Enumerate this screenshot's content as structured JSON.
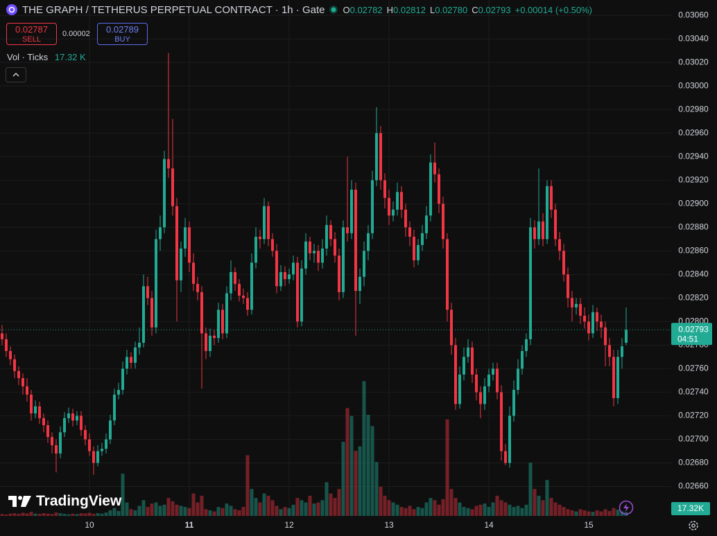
{
  "chart_data": {
    "type": "candlestick",
    "categories": [
      null,
      null,
      null,
      null,
      null,
      null,
      null,
      null,
      null,
      null,
      null,
      null,
      null,
      null,
      null,
      null,
      null,
      null,
      null,
      null,
      null,
      "10",
      null,
      null,
      null,
      null,
      null,
      null,
      null,
      null,
      null,
      null,
      null,
      null,
      null,
      null,
      null,
      null,
      null,
      null,
      null,
      null,
      null,
      null,
      null,
      "11",
      null,
      null,
      null,
      null,
      null,
      null,
      null,
      null,
      null,
      null,
      null,
      null,
      null,
      null,
      null,
      null,
      null,
      null,
      null,
      null,
      null,
      null,
      null,
      "12",
      null,
      null,
      null,
      null,
      null,
      null,
      null,
      null,
      null,
      null,
      null,
      null,
      null,
      null,
      null,
      null,
      null,
      null,
      null,
      null,
      null,
      null,
      null,
      "13",
      null,
      null,
      null,
      null,
      null,
      null,
      null,
      null,
      null,
      null,
      null,
      null,
      null,
      null,
      null,
      null,
      null,
      null,
      null,
      null,
      null,
      null,
      null,
      "14",
      null,
      null,
      null,
      null,
      null,
      null,
      null,
      null,
      null,
      null,
      null,
      null,
      null,
      null,
      null,
      null,
      null,
      null,
      null,
      null,
      null,
      null,
      null,
      "15",
      null,
      null,
      null,
      null,
      null,
      null,
      null,
      null,
      null
    ],
    "ohlc": [
      [
        0.0279,
        0.02797,
        0.0278,
        0.02785
      ],
      [
        0.02785,
        0.0279,
        0.0277,
        0.02775
      ],
      [
        0.02775,
        0.02779,
        0.02763,
        0.02768
      ],
      [
        0.02768,
        0.02772,
        0.02752,
        0.02758
      ],
      [
        0.02758,
        0.02762,
        0.02746,
        0.02752
      ],
      [
        0.02752,
        0.02756,
        0.02738,
        0.02745
      ],
      [
        0.02745,
        0.02752,
        0.02732,
        0.02738
      ],
      [
        0.02738,
        0.02742,
        0.02716,
        0.02722
      ],
      [
        0.02722,
        0.02733,
        0.02718,
        0.02728
      ],
      [
        0.02728,
        0.02732,
        0.02713,
        0.02718
      ],
      [
        0.02718,
        0.02722,
        0.02706,
        0.02712
      ],
      [
        0.02712,
        0.02716,
        0.02697,
        0.02702
      ],
      [
        0.02702,
        0.02706,
        0.02688,
        0.02695
      ],
      [
        0.02695,
        0.027,
        0.02672,
        0.02688
      ],
      [
        0.02688,
        0.02711,
        0.02684,
        0.02706
      ],
      [
        0.02706,
        0.02723,
        0.02702,
        0.02718
      ],
      [
        0.02718,
        0.02727,
        0.02714,
        0.02722
      ],
      [
        0.02722,
        0.02726,
        0.02711,
        0.02716
      ],
      [
        0.02716,
        0.02724,
        0.02712,
        0.0272
      ],
      [
        0.0272,
        0.02724,
        0.02703,
        0.02708
      ],
      [
        0.02708,
        0.02712,
        0.02695,
        0.027
      ],
      [
        0.027,
        0.02705,
        0.02686,
        0.0269
      ],
      [
        0.0269,
        0.02694,
        0.0267,
        0.0268
      ],
      [
        0.0268,
        0.02695,
        0.02677,
        0.0269
      ],
      [
        0.0269,
        0.02697,
        0.02686,
        0.02692
      ],
      [
        0.02692,
        0.02705,
        0.02688,
        0.027
      ],
      [
        0.027,
        0.02721,
        0.02696,
        0.02716
      ],
      [
        0.02716,
        0.02743,
        0.02712,
        0.02738
      ],
      [
        0.02738,
        0.02748,
        0.02734,
        0.02742
      ],
      [
        0.02742,
        0.02766,
        0.02738,
        0.0276
      ],
      [
        0.0276,
        0.02776,
        0.02755,
        0.0277
      ],
      [
        0.0277,
        0.02774,
        0.0276,
        0.02765
      ],
      [
        0.02765,
        0.02783,
        0.0276,
        0.02778
      ],
      [
        0.02778,
        0.02795,
        0.02772,
        0.02782
      ],
      [
        0.02782,
        0.0284,
        0.02778,
        0.0283
      ],
      [
        0.0283,
        0.02838,
        0.02814,
        0.0282
      ],
      [
        0.0282,
        0.02826,
        0.02788,
        0.02795
      ],
      [
        0.02795,
        0.02878,
        0.0279,
        0.0287
      ],
      [
        0.0287,
        0.0289,
        0.0286,
        0.0288
      ],
      [
        0.0288,
        0.02945,
        0.02875,
        0.02938
      ],
      [
        0.02938,
        0.03028,
        0.02922,
        0.0293
      ],
      [
        0.0293,
        0.02972,
        0.0289,
        0.02898
      ],
      [
        0.02898,
        0.02905,
        0.028,
        0.02835
      ],
      [
        0.02835,
        0.02868,
        0.02825,
        0.02862
      ],
      [
        0.02862,
        0.02888,
        0.02855,
        0.0288
      ],
      [
        0.0288,
        0.02885,
        0.02842,
        0.0285
      ],
      [
        0.0285,
        0.02858,
        0.02826,
        0.02832
      ],
      [
        0.02832,
        0.02838,
        0.02818,
        0.02825
      ],
      [
        0.02825,
        0.0283,
        0.02743,
        0.0279
      ],
      [
        0.0279,
        0.02795,
        0.02768,
        0.02775
      ],
      [
        0.02775,
        0.02794,
        0.0277,
        0.02788
      ],
      [
        0.02788,
        0.02793,
        0.0278,
        0.02786
      ],
      [
        0.02786,
        0.02816,
        0.02782,
        0.0281
      ],
      [
        0.0281,
        0.02815,
        0.02785,
        0.0279
      ],
      [
        0.0279,
        0.0283,
        0.02786,
        0.02824
      ],
      [
        0.02824,
        0.02852,
        0.02818,
        0.02842
      ],
      [
        0.02842,
        0.02846,
        0.02826,
        0.02832
      ],
      [
        0.02832,
        0.02836,
        0.02817,
        0.02822
      ],
      [
        0.02822,
        0.02828,
        0.02815,
        0.0282
      ],
      [
        0.0282,
        0.02825,
        0.02805,
        0.0281
      ],
      [
        0.0281,
        0.02858,
        0.02806,
        0.0285
      ],
      [
        0.0285,
        0.0288,
        0.02845,
        0.02872
      ],
      [
        0.02872,
        0.02878,
        0.02862,
        0.0287
      ],
      [
        0.0287,
        0.02905,
        0.02866,
        0.02898
      ],
      [
        0.02898,
        0.02902,
        0.02864,
        0.0287
      ],
      [
        0.0287,
        0.02875,
        0.02855,
        0.0286
      ],
      [
        0.0286,
        0.02866,
        0.02824,
        0.0283
      ],
      [
        0.0283,
        0.02848,
        0.02826,
        0.02842
      ],
      [
        0.02842,
        0.02847,
        0.0283,
        0.02836
      ],
      [
        0.02836,
        0.02845,
        0.02832,
        0.0284
      ],
      [
        0.0284,
        0.02856,
        0.02835,
        0.0285
      ],
      [
        0.0285,
        0.02855,
        0.02795,
        0.028
      ],
      [
        0.028,
        0.02852,
        0.02796,
        0.02845
      ],
      [
        0.02845,
        0.02875,
        0.0284,
        0.02868
      ],
      [
        0.02868,
        0.02872,
        0.02852,
        0.02858
      ],
      [
        0.02858,
        0.02866,
        0.0285,
        0.0286
      ],
      [
        0.0286,
        0.02865,
        0.02843,
        0.0285
      ],
      [
        0.0285,
        0.0287,
        0.02845,
        0.02862
      ],
      [
        0.02862,
        0.0289,
        0.02856,
        0.02882
      ],
      [
        0.02882,
        0.02886,
        0.02864,
        0.0287
      ],
      [
        0.0287,
        0.02876,
        0.0285,
        0.02856
      ],
      [
        0.02856,
        0.02862,
        0.02818,
        0.02825
      ],
      [
        0.02825,
        0.02886,
        0.0282,
        0.0288
      ],
      [
        0.0288,
        0.0294,
        0.02868,
        0.02875
      ],
      [
        0.02875,
        0.0292,
        0.0287,
        0.02912
      ],
      [
        0.02912,
        0.02918,
        0.02788,
        0.02826
      ],
      [
        0.02826,
        0.02845,
        0.02815,
        0.02838
      ],
      [
        0.02838,
        0.02868,
        0.0283,
        0.0286
      ],
      [
        0.0286,
        0.02882,
        0.02852,
        0.02875
      ],
      [
        0.02875,
        0.02928,
        0.0287,
        0.0292
      ],
      [
        0.0292,
        0.02982,
        0.02915,
        0.0296
      ],
      [
        0.0296,
        0.02966,
        0.02912,
        0.0292
      ],
      [
        0.0292,
        0.02926,
        0.02896,
        0.02905
      ],
      [
        0.02905,
        0.02912,
        0.02882,
        0.0289
      ],
      [
        0.0289,
        0.02902,
        0.02885,
        0.02895
      ],
      [
        0.02895,
        0.02918,
        0.0289,
        0.0291
      ],
      [
        0.0291,
        0.02915,
        0.02888,
        0.02895
      ],
      [
        0.02895,
        0.029,
        0.02872,
        0.0288
      ],
      [
        0.0288,
        0.02885,
        0.02864,
        0.02872
      ],
      [
        0.02872,
        0.02878,
        0.02846,
        0.02852
      ],
      [
        0.02852,
        0.0287,
        0.02848,
        0.02865
      ],
      [
        0.02865,
        0.02882,
        0.0286,
        0.02875
      ],
      [
        0.02875,
        0.02898,
        0.0287,
        0.0289
      ],
      [
        0.0289,
        0.02942,
        0.02885,
        0.02935
      ],
      [
        0.02935,
        0.02952,
        0.02918,
        0.02925
      ],
      [
        0.02925,
        0.0293,
        0.02892,
        0.029
      ],
      [
        0.029,
        0.02906,
        0.02862,
        0.0287
      ],
      [
        0.0287,
        0.02875,
        0.028,
        0.0281
      ],
      [
        0.0281,
        0.02816,
        0.02772,
        0.0278
      ],
      [
        0.0278,
        0.02786,
        0.02725,
        0.0273
      ],
      [
        0.0273,
        0.02762,
        0.02726,
        0.02755
      ],
      [
        0.02755,
        0.02778,
        0.0275,
        0.0277
      ],
      [
        0.0277,
        0.02785,
        0.02765,
        0.02778
      ],
      [
        0.02778,
        0.02783,
        0.02748,
        0.02755
      ],
      [
        0.02755,
        0.0276,
        0.02733,
        0.0274
      ],
      [
        0.0274,
        0.02745,
        0.02718,
        0.0273
      ],
      [
        0.0273,
        0.02752,
        0.02725,
        0.02745
      ],
      [
        0.02745,
        0.0276,
        0.0274,
        0.02755
      ],
      [
        0.02755,
        0.02765,
        0.0275,
        0.0276
      ],
      [
        0.0276,
        0.02765,
        0.02734,
        0.0274
      ],
      [
        0.0274,
        0.02746,
        0.02682,
        0.0269
      ],
      [
        0.0269,
        0.02696,
        0.02678,
        0.0268
      ],
      [
        0.0268,
        0.02728,
        0.02676,
        0.0272
      ],
      [
        0.0272,
        0.0275,
        0.02715,
        0.02742
      ],
      [
        0.02742,
        0.02768,
        0.02738,
        0.0276
      ],
      [
        0.0276,
        0.0278,
        0.02755,
        0.02775
      ],
      [
        0.02775,
        0.0279,
        0.0277,
        0.02785
      ],
      [
        0.02785,
        0.02888,
        0.0278,
        0.0288
      ],
      [
        0.0288,
        0.02886,
        0.02862,
        0.0287
      ],
      [
        0.0287,
        0.0293,
        0.02865,
        0.02885
      ],
      [
        0.02885,
        0.02892,
        0.02864,
        0.0287
      ],
      [
        0.0287,
        0.0292,
        0.02866,
        0.02915
      ],
      [
        0.02915,
        0.0292,
        0.02888,
        0.02895
      ],
      [
        0.02895,
        0.029,
        0.02864,
        0.0287
      ],
      [
        0.0287,
        0.02876,
        0.02852,
        0.0286
      ],
      [
        0.0286,
        0.02866,
        0.02834,
        0.0284
      ],
      [
        0.0284,
        0.02846,
        0.02812,
        0.0282
      ],
      [
        0.0282,
        0.02826,
        0.028,
        0.02812
      ],
      [
        0.02812,
        0.0282,
        0.02806,
        0.02815
      ],
      [
        0.02815,
        0.0282,
        0.02798,
        0.02805
      ],
      [
        0.02805,
        0.02812,
        0.02794,
        0.028
      ],
      [
        0.028,
        0.02806,
        0.02784,
        0.0279
      ],
      [
        0.0279,
        0.02814,
        0.02786,
        0.02808
      ],
      [
        0.02808,
        0.02812,
        0.02792,
        0.028
      ],
      [
        0.028,
        0.02806,
        0.02786,
        0.02795
      ],
      [
        0.02795,
        0.028,
        0.02762,
        0.0278
      ],
      [
        0.0278,
        0.02786,
        0.02762,
        0.0277
      ],
      [
        0.0277,
        0.02776,
        0.02728,
        0.02735
      ],
      [
        0.02735,
        0.02776,
        0.0273,
        0.0277
      ],
      [
        0.0277,
        0.02786,
        0.0276,
        0.02779
      ],
      [
        0.02782,
        0.02812,
        0.0278,
        0.02793
      ]
    ],
    "last_bar_labels": [
      "0.02782",
      "0.02812",
      "0.02780",
      "0.02793"
    ],
    "volumes": [
      8,
      6,
      10,
      12,
      9,
      14,
      11,
      18,
      10,
      9,
      12,
      10,
      8,
      15,
      12,
      9,
      7,
      10,
      8,
      12,
      11,
      14,
      9,
      12,
      10,
      15,
      25,
      35,
      22,
      188,
      60,
      30,
      25,
      45,
      70,
      40,
      55,
      60,
      45,
      50,
      80,
      65,
      50,
      45,
      40,
      35,
      100,
      60,
      90,
      30,
      25,
      20,
      40,
      35,
      55,
      45,
      30,
      25,
      40,
      270,
      120,
      80,
      60,
      100,
      90,
      70,
      45,
      30,
      40,
      35,
      50,
      80,
      70,
      60,
      90,
      55,
      60,
      70,
      150,
      100,
      80,
      120,
      330,
      480,
      445,
      290,
      310,
      600,
      450,
      400,
      240,
      130,
      90,
      70,
      60,
      50,
      40,
      35,
      45,
      30,
      40,
      35,
      60,
      80,
      70,
      50,
      75,
      430,
      120,
      80,
      60,
      40,
      35,
      30,
      45,
      50,
      55,
      40,
      60,
      90,
      70,
      60,
      50,
      40,
      45,
      35,
      50,
      237,
      120,
      90,
      70,
      160,
      80,
      60,
      50,
      40,
      30,
      25,
      20,
      30,
      25,
      20,
      18,
      25,
      20,
      30,
      22,
      35,
      28,
      20,
      17.32
    ],
    "vlim": [
      0,
      700
    ],
    "ylim": [
      0.02635,
      0.03073
    ],
    "yticks": [
      {
        "value": 0.0266,
        "label": "0.02660"
      },
      {
        "value": 0.0268,
        "label": "0.02680"
      },
      {
        "value": 0.027,
        "label": "0.02700"
      },
      {
        "value": 0.0272,
        "label": "0.02720"
      },
      {
        "value": 0.0274,
        "label": "0.02740"
      },
      {
        "value": 0.0276,
        "label": "0.02760"
      },
      {
        "value": 0.0278,
        "label": "0.02780"
      },
      {
        "value": 0.028,
        "label": "0.02800"
      },
      {
        "value": 0.0282,
        "label": "0.02820"
      },
      {
        "value": 0.0284,
        "label": "0.02840"
      },
      {
        "value": 0.0286,
        "label": "0.02860"
      },
      {
        "value": 0.0288,
        "label": "0.02880"
      },
      {
        "value": 0.029,
        "label": "0.02900"
      },
      {
        "value": 0.0292,
        "label": "0.02920"
      },
      {
        "value": 0.0294,
        "label": "0.02940"
      },
      {
        "value": 0.0296,
        "label": "0.02960"
      },
      {
        "value": 0.0298,
        "label": "0.02980"
      },
      {
        "value": 0.03,
        "label": "0.03000"
      },
      {
        "value": 0.0302,
        "label": "0.03020"
      },
      {
        "value": 0.0304,
        "label": "0.03040"
      },
      {
        "value": 0.0306,
        "label": "0.03060"
      }
    ],
    "grid": true,
    "up_color": "#22ab94",
    "down_color": "#f23645"
  },
  "header": {
    "title": "THE GRAPH / TETHERUS PERPETUAL CONTRACT · 1h · Gate",
    "ohlc_letters": [
      "O",
      "H",
      "L",
      "C"
    ],
    "change": "+0.00014 (+0.50%)"
  },
  "trade": {
    "sell_price": "0.02787",
    "sell": "SELL",
    "spread": "0.00002",
    "buy_price": "0.02789",
    "buy": "BUY"
  },
  "indicator": {
    "name": "Vol · Ticks",
    "value": "17.32 K",
    "axis_label": "17.32K"
  },
  "countdown": "04:51",
  "brand": "TradingView"
}
